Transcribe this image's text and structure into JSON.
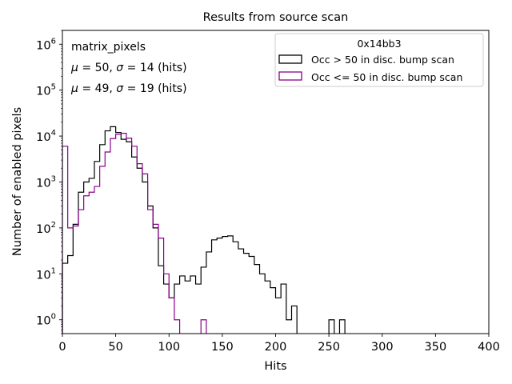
{
  "chart_data": {
    "type": "histogram",
    "title": "Results from source scan",
    "xlabel": "Hits",
    "ylabel": "Number of enabled pixels",
    "xlim": [
      0,
      400
    ],
    "ylim": [
      0.5,
      2000000
    ],
    "yscale": "log",
    "grid": false,
    "bin_width": 5,
    "x_ticks": [
      "0",
      "50",
      "100",
      "150",
      "200",
      "250",
      "300",
      "350",
      "400"
    ],
    "y_ticks": [
      {
        "value": 1,
        "base": "10",
        "exp": "0"
      },
      {
        "value": 10,
        "base": "10",
        "exp": "1"
      },
      {
        "value": 100,
        "base": "10",
        "exp": "2"
      },
      {
        "value": 1000,
        "base": "10",
        "exp": "3"
      },
      {
        "value": 10000,
        "base": "10",
        "exp": "4"
      },
      {
        "value": 100000,
        "base": "10",
        "exp": "5"
      },
      {
        "value": 1000000,
        "base": "10",
        "exp": "6"
      }
    ],
    "annotations": {
      "label": "matrix_pixels",
      "stats": [
        {
          "mu": "50",
          "sigma": "14",
          "unit": "(hits)",
          "color": "#000000"
        },
        {
          "mu": "49",
          "sigma": "19",
          "unit": "(hits)",
          "color": "#8b008b"
        }
      ]
    },
    "legend": {
      "title": "0x14bb3",
      "location": "top-right"
    },
    "series": [
      {
        "name": "Occ > 50 in disc. bump scan",
        "color": "#000000",
        "bins": [
          [
            0,
            17
          ],
          [
            5,
            25
          ],
          [
            10,
            120
          ],
          [
            15,
            600
          ],
          [
            20,
            1000
          ],
          [
            25,
            1200
          ],
          [
            30,
            2800
          ],
          [
            35,
            6500
          ],
          [
            40,
            13000
          ],
          [
            45,
            16000
          ],
          [
            50,
            12000
          ],
          [
            55,
            8500
          ],
          [
            60,
            7500
          ],
          [
            65,
            3500
          ],
          [
            70,
            2000
          ],
          [
            75,
            1000
          ],
          [
            80,
            300
          ],
          [
            85,
            100
          ],
          [
            90,
            15
          ],
          [
            95,
            6
          ],
          [
            100,
            3
          ],
          [
            105,
            6
          ],
          [
            110,
            9
          ],
          [
            115,
            7
          ],
          [
            120,
            9
          ],
          [
            125,
            6
          ],
          [
            130,
            14
          ],
          [
            135,
            30
          ],
          [
            140,
            55
          ],
          [
            145,
            60
          ],
          [
            150,
            65
          ],
          [
            155,
            67
          ],
          [
            160,
            50
          ],
          [
            165,
            35
          ],
          [
            170,
            28
          ],
          [
            175,
            24
          ],
          [
            180,
            16
          ],
          [
            185,
            10
          ],
          [
            190,
            7
          ],
          [
            195,
            5
          ],
          [
            200,
            3
          ],
          [
            205,
            6
          ],
          [
            210,
            1
          ],
          [
            215,
            2
          ],
          [
            250,
            1
          ],
          [
            260,
            1
          ]
        ]
      },
      {
        "name": "Occ <= 50 in disc. bump scan",
        "color": "#8b008b",
        "bins": [
          [
            0,
            6000
          ],
          [
            5,
            100
          ],
          [
            10,
            110
          ],
          [
            15,
            250
          ],
          [
            20,
            500
          ],
          [
            25,
            600
          ],
          [
            30,
            800
          ],
          [
            35,
            2200
          ],
          [
            40,
            4500
          ],
          [
            45,
            8800
          ],
          [
            50,
            11000
          ],
          [
            55,
            11500
          ],
          [
            60,
            9000
          ],
          [
            65,
            6000
          ],
          [
            70,
            2500
          ],
          [
            75,
            1500
          ],
          [
            80,
            250
          ],
          [
            85,
            120
          ],
          [
            90,
            60
          ],
          [
            95,
            10
          ],
          [
            100,
            3
          ],
          [
            105,
            1
          ],
          [
            130,
            1
          ]
        ]
      }
    ]
  }
}
